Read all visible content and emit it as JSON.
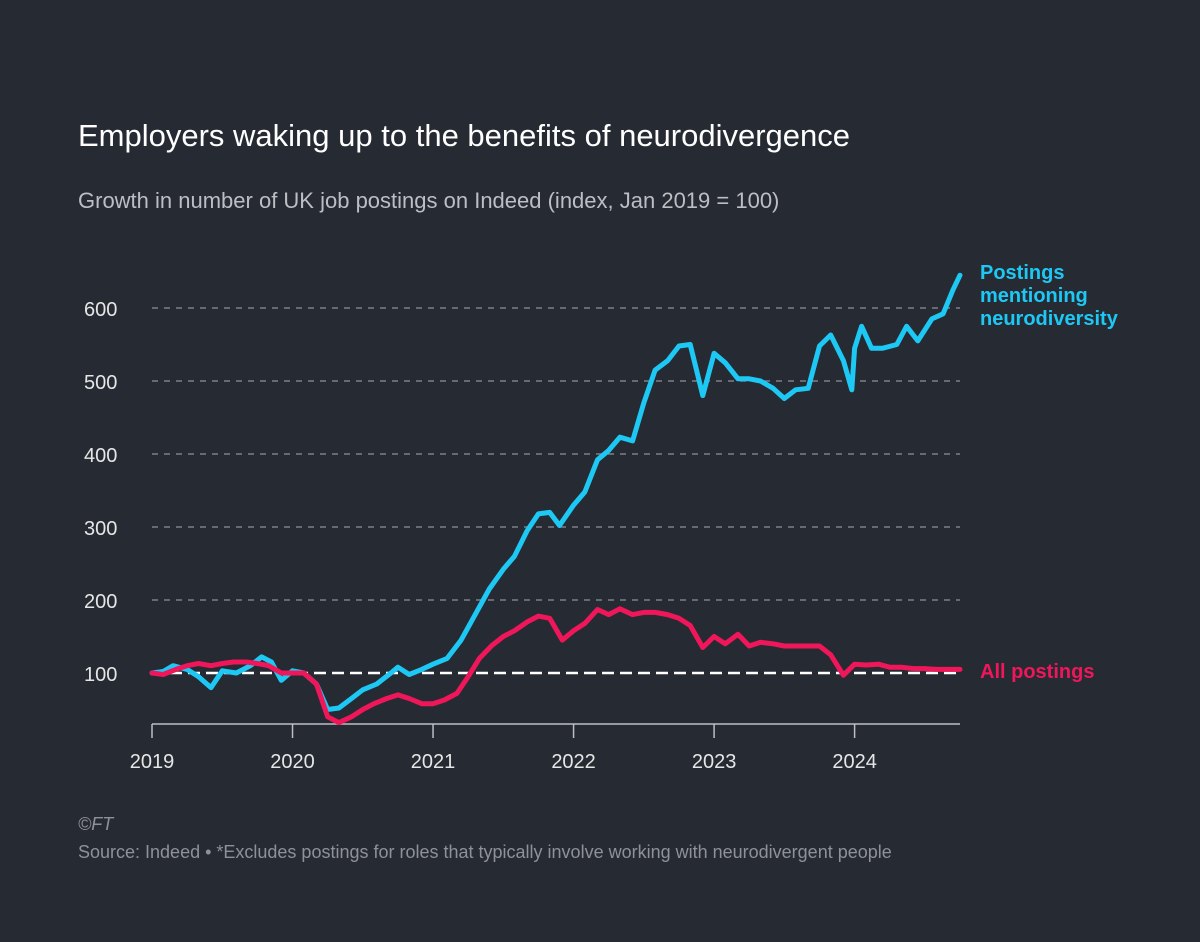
{
  "title": "Employers waking up to the benefits of neurodivergence",
  "subtitle": "Growth in number of UK job postings on Indeed (index, Jan 2019 = 100)",
  "copyright": "©FT",
  "source": "Source: Indeed • *Excludes postings for roles that typically involve working with neurodivergent people",
  "colors": {
    "background": "#262a33",
    "neurodiversity": "#1ec8f4",
    "all_postings": "#f0165a",
    "grid": "#8e9199",
    "axis_text": "#e6e6e6"
  },
  "chart_data": {
    "type": "line",
    "title": "Employers waking up to the benefits of neurodivergence",
    "subtitle": "Growth in number of UK job postings on Indeed (index, Jan 2019 = 100)",
    "xlabel": "",
    "ylabel": "",
    "xlim": [
      2019.0,
      2024.75
    ],
    "ylim": [
      30,
      650
    ],
    "x_ticks": [
      2019,
      2020,
      2021,
      2022,
      2023,
      2024
    ],
    "x_tick_labels": [
      "2019",
      "2020",
      "2021",
      "2022",
      "2023",
      "2024"
    ],
    "y_ticks": [
      100,
      200,
      300,
      400,
      500,
      600
    ],
    "y_tick_labels": [
      "100",
      "200",
      "300",
      "400",
      "500",
      "600"
    ],
    "baseline": 100,
    "grid": true,
    "series": [
      {
        "name": "Postings mentioning neurodiversity",
        "label_lines": [
          "Postings",
          "mentioning",
          "neurodiversity"
        ],
        "color": "#1ec8f4",
        "points": [
          [
            2019.0,
            100
          ],
          [
            2019.08,
            102
          ],
          [
            2019.15,
            110
          ],
          [
            2019.25,
            105
          ],
          [
            2019.33,
            95
          ],
          [
            2019.42,
            80
          ],
          [
            2019.5,
            103
          ],
          [
            2019.6,
            100
          ],
          [
            2019.7,
            110
          ],
          [
            2019.78,
            122
          ],
          [
            2019.85,
            115
          ],
          [
            2019.92,
            90
          ],
          [
            2020.0,
            103
          ],
          [
            2020.08,
            100
          ],
          [
            2020.17,
            85
          ],
          [
            2020.25,
            50
          ],
          [
            2020.33,
            52
          ],
          [
            2020.42,
            65
          ],
          [
            2020.5,
            77
          ],
          [
            2020.6,
            85
          ],
          [
            2020.7,
            100
          ],
          [
            2020.75,
            108
          ],
          [
            2020.83,
            98
          ],
          [
            2020.92,
            105
          ],
          [
            2021.0,
            112
          ],
          [
            2021.1,
            120
          ],
          [
            2021.2,
            145
          ],
          [
            2021.3,
            180
          ],
          [
            2021.4,
            215
          ],
          [
            2021.5,
            242
          ],
          [
            2021.58,
            260
          ],
          [
            2021.67,
            295
          ],
          [
            2021.75,
            318
          ],
          [
            2021.83,
            320
          ],
          [
            2021.9,
            302
          ],
          [
            2022.0,
            330
          ],
          [
            2022.08,
            348
          ],
          [
            2022.17,
            392
          ],
          [
            2022.25,
            405
          ],
          [
            2022.33,
            423
          ],
          [
            2022.42,
            418
          ],
          [
            2022.5,
            470
          ],
          [
            2022.58,
            515
          ],
          [
            2022.67,
            528
          ],
          [
            2022.75,
            548
          ],
          [
            2022.83,
            550
          ],
          [
            2022.92,
            480
          ],
          [
            2023.0,
            538
          ],
          [
            2023.08,
            525
          ],
          [
            2023.17,
            503
          ],
          [
            2023.25,
            503
          ],
          [
            2023.33,
            500
          ],
          [
            2023.42,
            490
          ],
          [
            2023.5,
            476
          ],
          [
            2023.58,
            488
          ],
          [
            2023.67,
            490
          ],
          [
            2023.75,
            548
          ],
          [
            2023.83,
            563
          ],
          [
            2023.92,
            528
          ],
          [
            2023.98,
            488
          ],
          [
            2024.0,
            545
          ],
          [
            2024.05,
            575
          ],
          [
            2024.12,
            545
          ],
          [
            2024.2,
            545
          ],
          [
            2024.3,
            550
          ],
          [
            2024.37,
            575
          ],
          [
            2024.45,
            555
          ],
          [
            2024.55,
            585
          ],
          [
            2024.63,
            592
          ],
          [
            2024.7,
            625
          ],
          [
            2024.75,
            645
          ]
        ]
      },
      {
        "name": "All postings",
        "label_lines": [
          "All postings"
        ],
        "color": "#f0165a",
        "points": [
          [
            2019.0,
            100
          ],
          [
            2019.08,
            98
          ],
          [
            2019.17,
            105
          ],
          [
            2019.25,
            110
          ],
          [
            2019.33,
            113
          ],
          [
            2019.42,
            110
          ],
          [
            2019.5,
            113
          ],
          [
            2019.58,
            115
          ],
          [
            2019.67,
            115
          ],
          [
            2019.75,
            113
          ],
          [
            2019.83,
            110
          ],
          [
            2019.92,
            100
          ],
          [
            2020.0,
            100
          ],
          [
            2020.08,
            100
          ],
          [
            2020.17,
            85
          ],
          [
            2020.25,
            40
          ],
          [
            2020.33,
            32
          ],
          [
            2020.42,
            40
          ],
          [
            2020.5,
            50
          ],
          [
            2020.58,
            58
          ],
          [
            2020.67,
            65
          ],
          [
            2020.75,
            70
          ],
          [
            2020.83,
            65
          ],
          [
            2020.92,
            58
          ],
          [
            2021.0,
            58
          ],
          [
            2021.08,
            63
          ],
          [
            2021.17,
            72
          ],
          [
            2021.25,
            95
          ],
          [
            2021.33,
            120
          ],
          [
            2021.42,
            138
          ],
          [
            2021.5,
            150
          ],
          [
            2021.58,
            158
          ],
          [
            2021.67,
            170
          ],
          [
            2021.75,
            178
          ],
          [
            2021.83,
            175
          ],
          [
            2021.92,
            145
          ],
          [
            2022.0,
            158
          ],
          [
            2022.08,
            168
          ],
          [
            2022.17,
            187
          ],
          [
            2022.25,
            180
          ],
          [
            2022.33,
            188
          ],
          [
            2022.42,
            180
          ],
          [
            2022.5,
            183
          ],
          [
            2022.58,
            183
          ],
          [
            2022.67,
            180
          ],
          [
            2022.75,
            175
          ],
          [
            2022.83,
            165
          ],
          [
            2022.92,
            135
          ],
          [
            2023.0,
            150
          ],
          [
            2023.08,
            140
          ],
          [
            2023.17,
            153
          ],
          [
            2023.25,
            137
          ],
          [
            2023.33,
            142
          ],
          [
            2023.42,
            140
          ],
          [
            2023.5,
            137
          ],
          [
            2023.58,
            137
          ],
          [
            2023.67,
            137
          ],
          [
            2023.75,
            137
          ],
          [
            2023.83,
            125
          ],
          [
            2023.92,
            97
          ],
          [
            2024.0,
            112
          ],
          [
            2024.08,
            111
          ],
          [
            2024.17,
            112
          ],
          [
            2024.25,
            108
          ],
          [
            2024.33,
            108
          ],
          [
            2024.42,
            106
          ],
          [
            2024.5,
            106
          ],
          [
            2024.58,
            105
          ],
          [
            2024.67,
            105
          ],
          [
            2024.75,
            105
          ]
        ]
      }
    ]
  }
}
